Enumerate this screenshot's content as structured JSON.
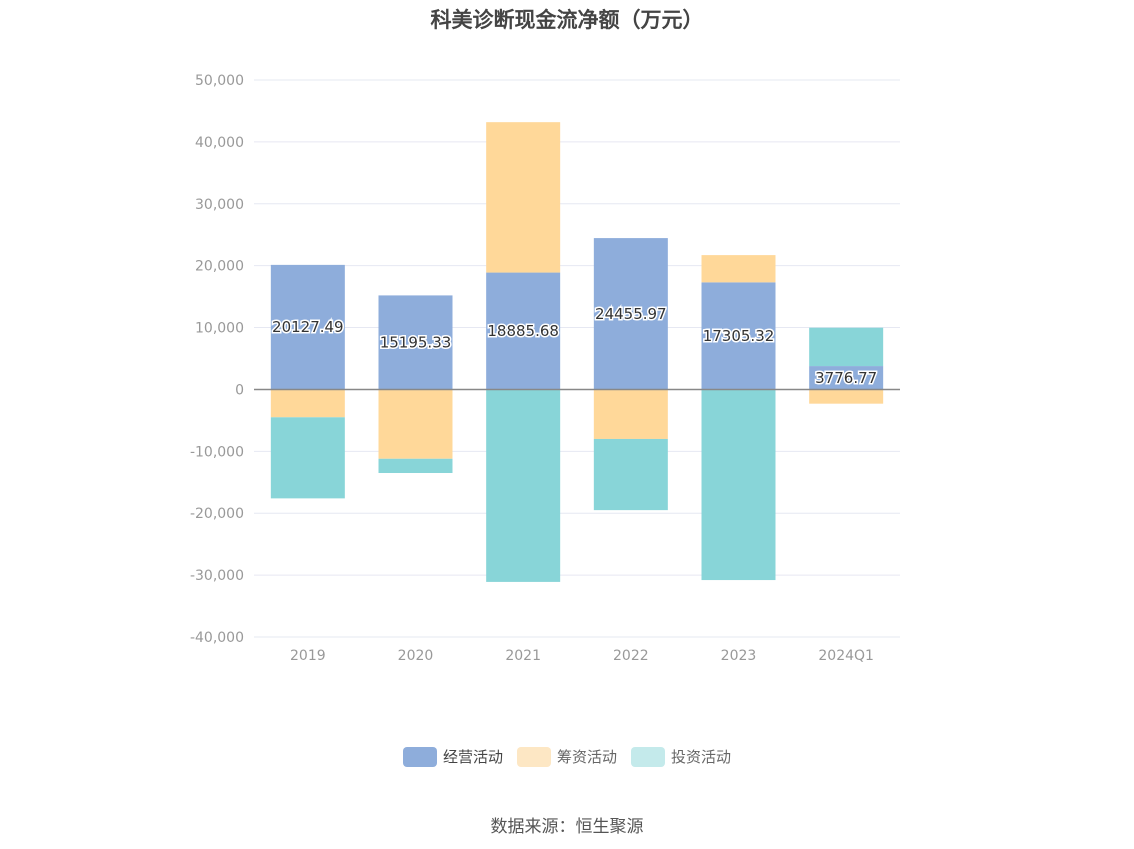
{
  "title": "科美诊断现金流净额（万元）",
  "source": "数据来源：恒生聚源",
  "chart_data": {
    "type": "bar",
    "stacked": true,
    "title": "科美诊断现金流净额（万元）",
    "xlabel": "",
    "ylabel": "",
    "categories": [
      "2019",
      "2020",
      "2021",
      "2022",
      "2023",
      "2024Q1"
    ],
    "ylim": [
      -40000,
      50000
    ],
    "yticks": [
      50000,
      40000,
      30000,
      20000,
      10000,
      0,
      -10000,
      -20000,
      -30000,
      -40000
    ],
    "ytick_labels": [
      "50,000",
      "40,000",
      "30,000",
      "20,000",
      "10,000",
      "0",
      "-10,000",
      "-20,000",
      "-30,000",
      "-40,000"
    ],
    "grid": true,
    "legend_position": "bottom",
    "series": [
      {
        "name": "经营活动",
        "color": "#8eaddb",
        "values": [
          20127.49,
          15195.33,
          18885.68,
          24455.97,
          17305.32,
          3776.77
        ],
        "labels": [
          "20127.49",
          "15195.33",
          "18885.68",
          "24455.97",
          "17305.32",
          "3776.77"
        ]
      },
      {
        "name": "筹资活动",
        "color": "#ffd899",
        "values": [
          -4500,
          -11200,
          24300,
          -8000,
          4400,
          -2300
        ]
      },
      {
        "name": "投资活动",
        "color": "#88d5d8",
        "values": [
          -13100,
          -2300,
          -31100,
          -11500,
          -30800,
          6200
        ]
      }
    ]
  }
}
